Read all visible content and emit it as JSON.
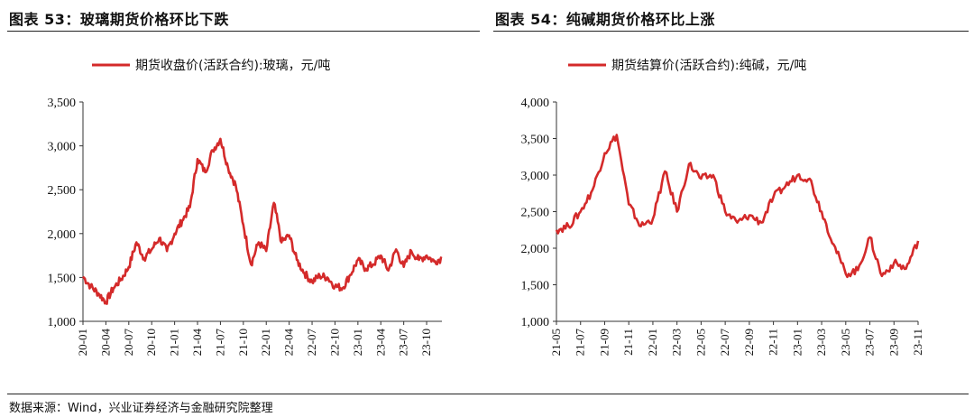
{
  "panels": [
    {
      "title": "图表 53：玻璃期货价格环比下跌"
    },
    {
      "title": "图表 54：纯碱期货价格环比上涨"
    }
  ],
  "source": "数据来源：Wind，兴业证券经济与金融研究院整理",
  "colors": {
    "series": "#d42a2a",
    "axis": "#333333"
  },
  "chart_data": [
    {
      "type": "line",
      "legend_position": "top",
      "grid": false,
      "ylim": [
        1000,
        3500
      ],
      "yticks": [
        "1,000",
        "1,500",
        "2,000",
        "2,500",
        "3,000",
        "3,500"
      ],
      "ytick_values": [
        1000,
        1500,
        2000,
        2500,
        3000,
        3500
      ],
      "xlim": [
        "2020-01",
        "2023-12"
      ],
      "xticks": [
        "20-01",
        "20-04",
        "20-07",
        "20-10",
        "21-01",
        "21-04",
        "21-07",
        "21-10",
        "22-01",
        "22-04",
        "22-07",
        "22-10",
        "23-01",
        "23-04",
        "23-07",
        "23-10"
      ],
      "series": [
        {
          "name": "期货收盘价(活跃合约):玻璃，元/吨",
          "x": [
            "2020-01",
            "2020-02",
            "2020-03",
            "2020-04",
            "2020-05",
            "2020-06",
            "2020-07",
            "2020-08",
            "2020-09",
            "2020-10",
            "2020-11",
            "2020-12",
            "2021-01",
            "2021-02",
            "2021-03",
            "2021-04",
            "2021-05",
            "2021-06",
            "2021-07",
            "2021-08",
            "2021-09",
            "2021-10",
            "2021-11",
            "2021-12",
            "2022-01",
            "2022-02",
            "2022-03",
            "2022-04",
            "2022-05",
            "2022-06",
            "2022-07",
            "2022-08",
            "2022-09",
            "2022-10",
            "2022-11",
            "2022-12",
            "2023-01",
            "2023-02",
            "2023-03",
            "2023-04",
            "2023-05",
            "2023-06",
            "2023-07",
            "2023-08",
            "2023-09",
            "2023-10",
            "2023-11",
            "2023-12"
          ],
          "y": [
            1510,
            1400,
            1320,
            1220,
            1380,
            1480,
            1620,
            1900,
            1720,
            1820,
            1950,
            1800,
            2000,
            2150,
            2300,
            2850,
            2700,
            2950,
            3080,
            2750,
            2550,
            2100,
            1650,
            1900,
            1800,
            2350,
            1900,
            1980,
            1700,
            1550,
            1450,
            1520,
            1500,
            1400,
            1380,
            1530,
            1700,
            1600,
            1650,
            1750,
            1580,
            1820,
            1620,
            1800,
            1700,
            1750,
            1680,
            1720
          ]
        }
      ]
    },
    {
      "type": "line",
      "legend_position": "top",
      "grid": false,
      "ylim": [
        1000,
        4000
      ],
      "yticks": [
        "1,000",
        "1,500",
        "2,000",
        "2,500",
        "3,000",
        "3,500",
        "4,000"
      ],
      "ytick_values": [
        1000,
        1500,
        2000,
        2500,
        3000,
        3500,
        4000
      ],
      "xlim": [
        "2021-05",
        "2023-11"
      ],
      "xticks": [
        "21-05",
        "21-07",
        "21-09",
        "21-11",
        "22-01",
        "22-03",
        "22-05",
        "22-07",
        "22-09",
        "22-11",
        "23-01",
        "23-03",
        "23-05",
        "23-07",
        "23-09",
        "23-11"
      ],
      "series": [
        {
          "name": "期货结算价(活跃合约):纯碱，元/吨",
          "x": [
            "2021-05",
            "2021-06",
            "2021-07",
            "2021-08",
            "2021-09",
            "2021-10",
            "2021-11",
            "2021-12",
            "2022-01",
            "2022-02",
            "2022-03",
            "2022-04",
            "2022-05",
            "2022-06",
            "2022-07",
            "2022-08",
            "2022-09",
            "2022-10",
            "2022-11",
            "2022-12",
            "2023-01",
            "2023-02",
            "2023-03",
            "2023-04",
            "2023-05",
            "2023-06",
            "2023-07",
            "2023-08",
            "2023-09",
            "2023-10",
            "2023-11"
          ],
          "y": [
            2250,
            2300,
            2500,
            2800,
            3300,
            3550,
            2600,
            2300,
            2400,
            3050,
            2500,
            3150,
            2950,
            3000,
            2500,
            2350,
            2450,
            2350,
            2700,
            2850,
            3000,
            2950,
            2500,
            2050,
            1650,
            1700,
            2150,
            1620,
            1800,
            1720,
            2100
          ]
        }
      ]
    }
  ]
}
